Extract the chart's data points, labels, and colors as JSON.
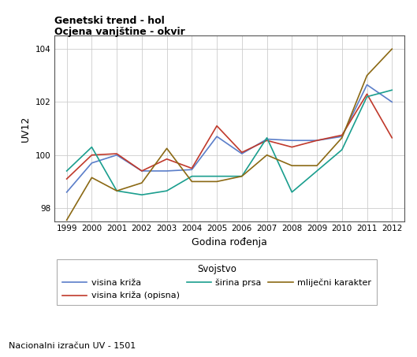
{
  "title_line1": "Genetski trend - hol",
  "title_line2": "Ocjena vanjštine - okvir",
  "xlabel": "Godina rođenja",
  "ylabel": "UV12",
  "footnote": "Nacionalni izračun UV - 1501",
  "legend_title": "Svojstvo",
  "years": [
    1999,
    2000,
    2001,
    2002,
    2003,
    2004,
    2005,
    2006,
    2007,
    2008,
    2009,
    2010,
    2011,
    2012
  ],
  "visina_kriza": [
    98.6,
    99.7,
    100.0,
    99.4,
    99.4,
    99.45,
    100.7,
    100.05,
    100.6,
    100.55,
    100.55,
    100.7,
    102.65,
    102.0
  ],
  "visina_kriza_opisna": [
    99.1,
    100.0,
    100.05,
    99.4,
    99.85,
    99.5,
    101.1,
    100.1,
    100.55,
    100.3,
    100.55,
    100.75,
    102.3,
    100.65
  ],
  "sirina_prsa": [
    99.4,
    100.3,
    98.65,
    98.5,
    98.65,
    99.2,
    99.2,
    99.2,
    100.65,
    98.6,
    99.4,
    100.2,
    102.2,
    102.45
  ],
  "mlijecni_karakter": [
    97.55,
    99.15,
    98.65,
    98.95,
    100.25,
    99.0,
    99.0,
    99.2,
    100.0,
    99.6,
    99.6,
    100.65,
    103.0,
    104.0
  ],
  "color_visina_kriza": "#5b7ec9",
  "color_visina_kriza_opisna": "#c0392b",
  "color_sirina_prsa": "#1a9e8e",
  "color_mlijecni_karakter": "#8B6914",
  "ylim_min": 97.5,
  "ylim_max": 104.5,
  "yticks": [
    98,
    100,
    102,
    104
  ],
  "background_color": "#ffffff",
  "plot_bg_color": "#ffffff",
  "grid_color": "#cccccc"
}
